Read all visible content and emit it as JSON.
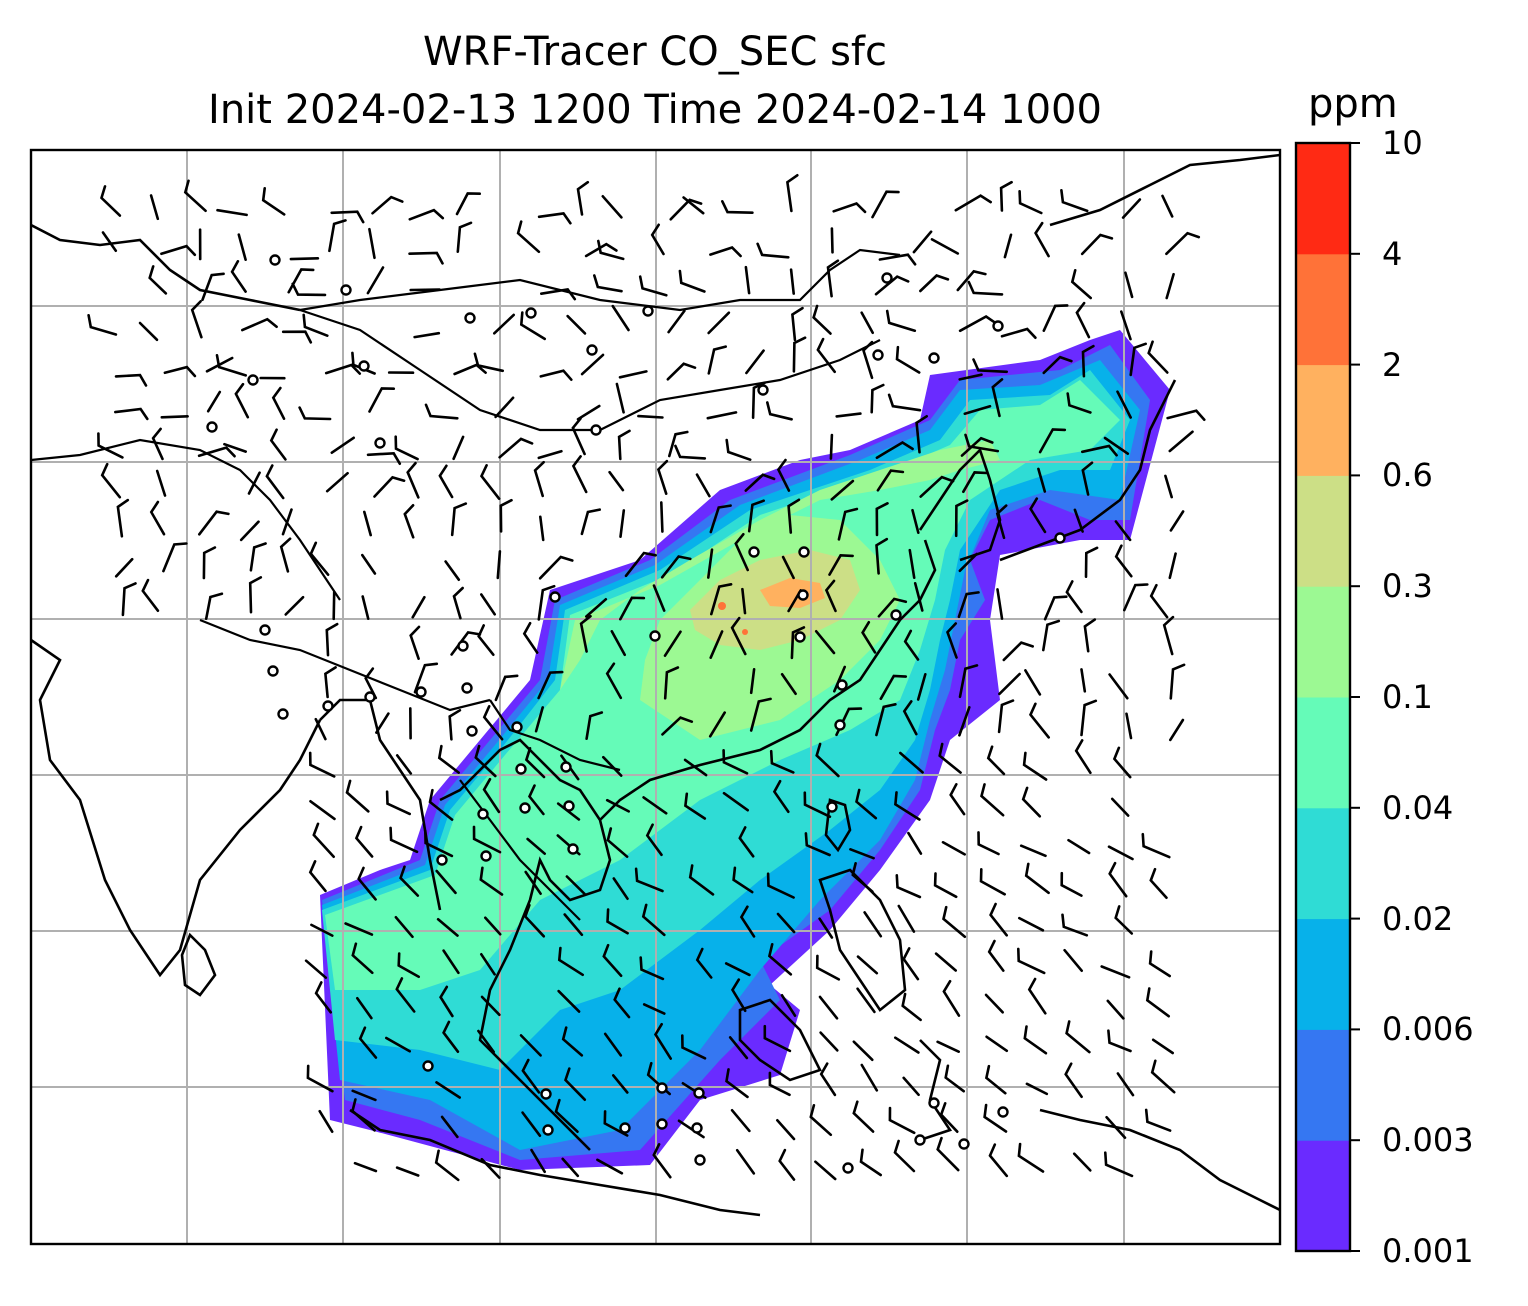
{
  "title": {
    "line1": "WRF-Tracer CO_SEC sfc",
    "line2": "Init 2024-02-13 1200 Time 2024-02-14 1000"
  },
  "colorbar": {
    "unit": "ppm",
    "levels": [
      "0.001",
      "0.003",
      "0.006",
      "0.02",
      "0.04",
      "0.1",
      "0.3",
      "0.6",
      "2",
      "4",
      "10"
    ],
    "colors": [
      "#6a2bff",
      "#3577f2",
      "#07b1ea",
      "#2fdcd5",
      "#65fbb8",
      "#9cf993",
      "#ccdf86",
      "#ffb15f",
      "#ff7238",
      "#ff2a14"
    ]
  },
  "map": {
    "field": "CO_SEC surface concentration",
    "overlays": [
      "coastlines",
      "country-borders",
      "gridlines",
      "wind-barbs",
      "station-markers"
    ],
    "grid_color": "#b0b0b0"
  }
}
